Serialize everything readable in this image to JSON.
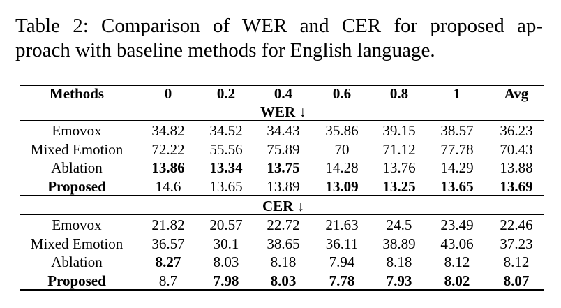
{
  "caption": [
    "Table 2: Comparison of WER and CER for proposed ap-",
    "proach with baseline methods for English language."
  ],
  "table": {
    "header": [
      "Methods",
      "0",
      "0.2",
      "0.4",
      "0.6",
      "0.8",
      "1",
      "Avg"
    ],
    "sections": [
      {
        "title": "WER ↓",
        "rows": [
          {
            "cells": [
              "Emovox",
              "34.82",
              "34.52",
              "34.43",
              "35.86",
              "39.15",
              "38.57",
              "36.23"
            ],
            "bold": []
          },
          {
            "cells": [
              "Mixed Emotion",
              "72.22",
              "55.56",
              "75.89",
              "70",
              "71.12",
              "77.78",
              "70.43"
            ],
            "bold": []
          },
          {
            "cells": [
              "Ablation",
              "13.86",
              "13.34",
              "13.75",
              "14.28",
              "13.76",
              "14.29",
              "13.88"
            ],
            "bold": [
              1,
              2,
              3
            ]
          },
          {
            "cells": [
              "Proposed",
              "14.6",
              "13.65",
              "13.89",
              "13.09",
              "13.25",
              "13.65",
              "13.69"
            ],
            "bold": [
              0,
              4,
              5,
              6,
              7
            ]
          }
        ]
      },
      {
        "title": "CER ↓",
        "rows": [
          {
            "cells": [
              "Emovox",
              "21.82",
              "20.57",
              "22.72",
              "21.63",
              "24.5",
              "23.49",
              "22.46"
            ],
            "bold": []
          },
          {
            "cells": [
              "Mixed Emotion",
              "36.57",
              "30.1",
              "38.65",
              "36.11",
              "38.89",
              "43.06",
              "37.23"
            ],
            "bold": []
          },
          {
            "cells": [
              "Ablation",
              "8.27",
              "8.03",
              "8.18",
              "7.94",
              "8.18",
              "8.12",
              "8.12"
            ],
            "bold": [
              1
            ]
          },
          {
            "cells": [
              "Proposed",
              "8.7",
              "7.98",
              "8.03",
              "7.78",
              "7.93",
              "8.02",
              "8.07"
            ],
            "bold": [
              0,
              2,
              3,
              4,
              5,
              6,
              7
            ]
          }
        ]
      }
    ]
  }
}
